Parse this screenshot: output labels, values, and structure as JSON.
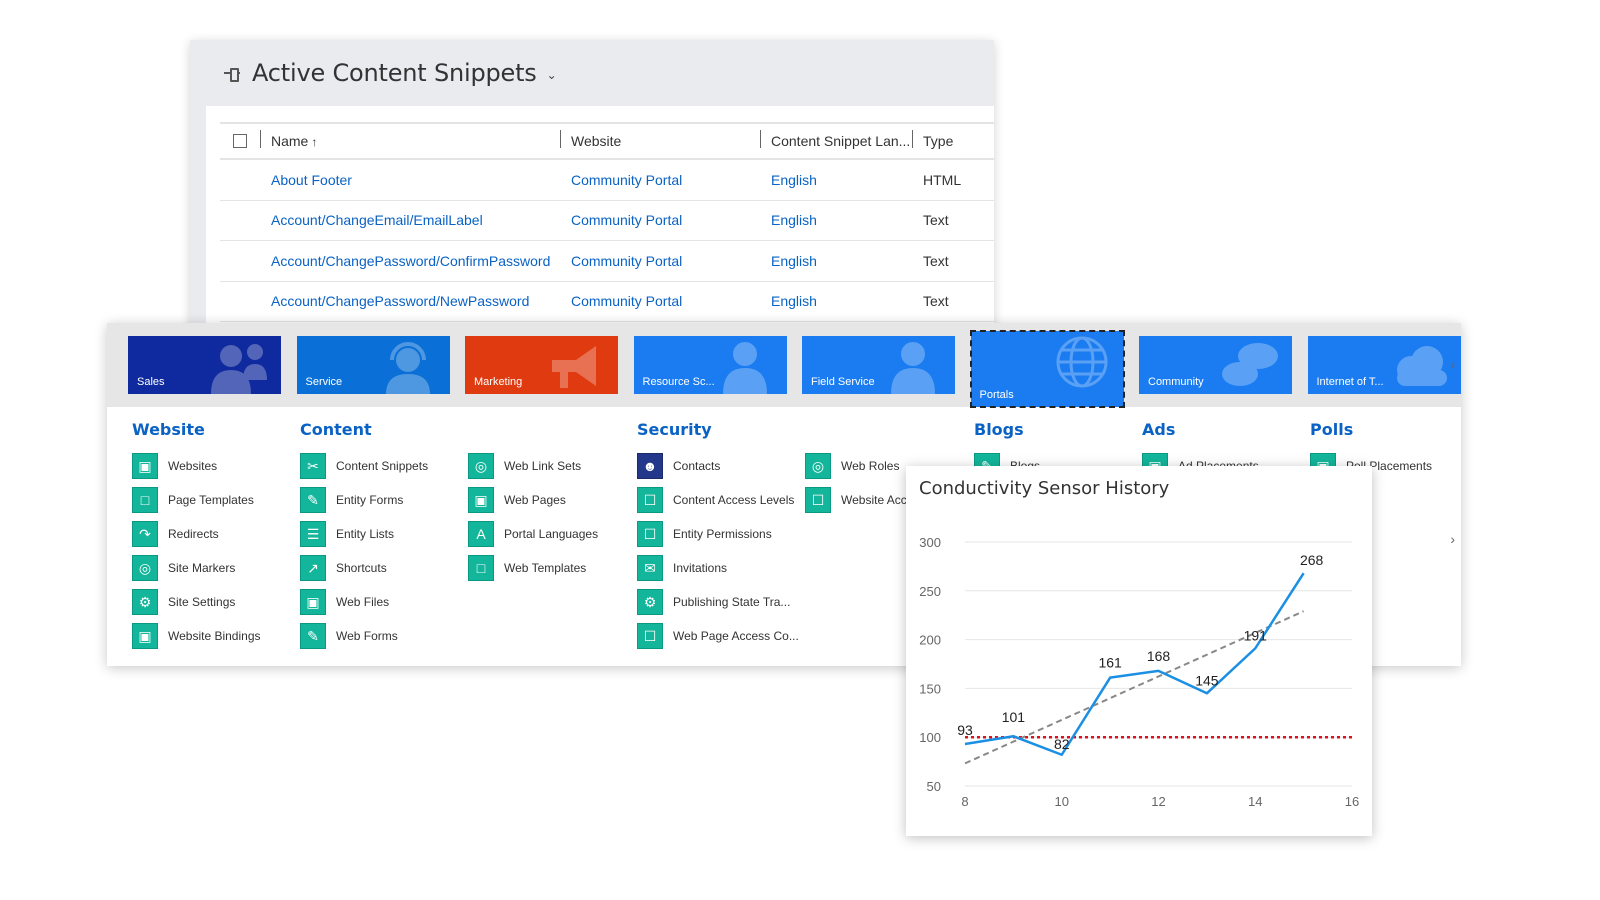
{
  "grid": {
    "view_title": "Active Content Snippets",
    "columns": {
      "name": "Name",
      "website": "Website",
      "language": "Content Snippet Lan...",
      "type": "Type"
    },
    "rows": [
      {
        "name": "About Footer",
        "website": "Community Portal",
        "language": "English",
        "type": "HTML"
      },
      {
        "name": "Account/ChangeEmail/EmailLabel",
        "website": "Community Portal",
        "language": "English",
        "type": "Text"
      },
      {
        "name": "Account/ChangePassword/ConfirmPassword",
        "website": "Community Portal",
        "language": "English",
        "type": "Text"
      },
      {
        "name": "Account/ChangePassword/NewPassword",
        "website": "Community Portal",
        "language": "English",
        "type": "Text"
      }
    ]
  },
  "sitemap": {
    "tiles": [
      {
        "label": "Sales",
        "color": "#0f2a9e",
        "icon": "people-icon"
      },
      {
        "label": "Service",
        "color": "#0a6fd6",
        "icon": "headset-icon"
      },
      {
        "label": "Marketing",
        "color": "#e03a11",
        "icon": "megaphone-icon"
      },
      {
        "label": "Resource Sc...",
        "color": "#1a7cf0",
        "icon": "person-icon"
      },
      {
        "label": "Field Service",
        "color": "#1a7cf0",
        "icon": "person-icon"
      },
      {
        "label": "Portals",
        "color": "#1a7cf0",
        "icon": "globe-icon",
        "selected": true
      },
      {
        "label": "Community",
        "color": "#1a7cf0",
        "icon": "chat-icon"
      },
      {
        "label": "Internet of T...",
        "color": "#1a7cf0",
        "icon": "cloud-icon"
      }
    ],
    "areas": {
      "website": {
        "title": "Website",
        "items": [
          "Websites",
          "Page Templates",
          "Redirects",
          "Site Markers",
          "Site Settings",
          "Website Bindings"
        ]
      },
      "content": {
        "title": "Content",
        "items": [
          "Content Snippets",
          "Entity Forms",
          "Entity Lists",
          "Shortcuts",
          "Web Files",
          "Web Forms"
        ]
      },
      "content2": {
        "items": [
          "Web Link Sets",
          "Web Pages",
          "Portal Languages",
          "Web Templates"
        ]
      },
      "security": {
        "title": "Security",
        "items": [
          "Contacts",
          "Content Access Levels",
          "Entity Permissions",
          "Invitations",
          "Publishing State Tra...",
          "Web Page Access Co..."
        ]
      },
      "security2": {
        "items": [
          "Web Roles",
          "Website Acc"
        ]
      },
      "blogs": {
        "title": "Blogs",
        "items": [
          "Blogs"
        ]
      },
      "ads": {
        "title": "Ads",
        "items": [
          "Ad Placements"
        ]
      },
      "polls": {
        "title": "Polls",
        "items": [
          "Poll Placements"
        ]
      }
    }
  },
  "chart_data": {
    "type": "line",
    "title": "Conductivity Sensor History",
    "x": [
      8,
      9,
      10,
      11,
      12,
      13,
      14,
      15
    ],
    "series": [
      {
        "values": [
          93,
          101,
          82,
          161,
          168,
          145,
          191,
          268
        ],
        "color": "#1a8fe3"
      }
    ],
    "data_labels": [
      "93",
      "101",
      "82",
      "161",
      "168",
      "145",
      "191",
      "268"
    ],
    "trendline": {
      "color": "#888888",
      "style": "dashed"
    },
    "reference_line": {
      "value": 100,
      "color": "#e0101e",
      "style": "dotted"
    },
    "xticks": [
      8,
      10,
      12,
      14,
      16
    ],
    "yticks": [
      50,
      100,
      150,
      200,
      250,
      300
    ],
    "xlim": [
      8,
      16
    ],
    "ylim": [
      50,
      300
    ],
    "grid": true
  }
}
